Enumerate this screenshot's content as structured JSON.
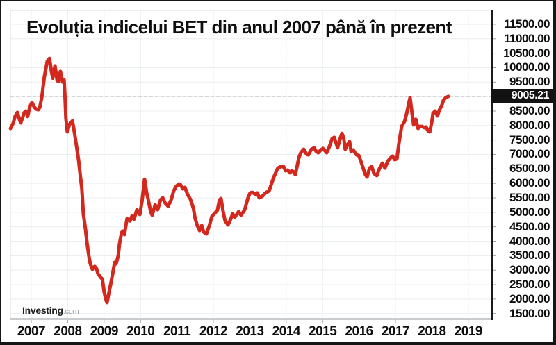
{
  "title": "Evoluția indicelui BET din anul 2007 până în prezent",
  "watermark": {
    "brand": "Investing",
    "suffix": ".com"
  },
  "current_value": {
    "label": "9005.21",
    "value": 9005.21
  },
  "y_axis": {
    "labels": [
      "11500.00",
      "11000.00",
      "10500.00",
      "10000.00",
      "9500.00",
      "8500.00",
      "8000.00",
      "7500.00",
      "7000.00",
      "6500.00",
      "6000.00",
      "5500.00",
      "5000.00",
      "4500.00",
      "4000.00",
      "3500.00",
      "3000.00",
      "2500.00",
      "2000.00",
      "1500.00"
    ]
  },
  "x_axis": {
    "years": [
      "2007",
      "2008",
      "2009",
      "2010",
      "2011",
      "2012",
      "2013",
      "2014",
      "2015",
      "2016",
      "2017",
      "2018",
      "2019"
    ]
  },
  "colors": {
    "line": "#d3281e",
    "badge_bg": "#121212",
    "badge_text": "#ffffff",
    "grid": "#e9eef0",
    "plot_border": "#d9dde0",
    "axis_line": "#1a1a1a",
    "bottom_axis": "#c9ccce",
    "tick": "#9aa0a5",
    "dashed_line": "#b0b5b8",
    "text": "#0e0e0e"
  },
  "chart_data": {
    "type": "line",
    "title": "Evoluția indicelui BET din anul 2007 până în prezent",
    "xlabel": "",
    "ylabel": "",
    "x_range": [
      2006.4,
      2019.65
    ],
    "y_grid": {
      "min": 1500,
      "max": 11500,
      "step": 500
    },
    "grid": true,
    "legend": false,
    "current_value_line": 9005.21,
    "series": [
      {
        "name": "BET",
        "points": [
          [
            2006.43,
            7900
          ],
          [
            2006.5,
            8070
          ],
          [
            2006.56,
            8330
          ],
          [
            2006.62,
            8450
          ],
          [
            2006.68,
            8190
          ],
          [
            2006.71,
            8090
          ],
          [
            2006.77,
            8300
          ],
          [
            2006.81,
            8450
          ],
          [
            2006.85,
            8500
          ],
          [
            2006.9,
            8310
          ],
          [
            2006.96,
            8650
          ],
          [
            2007.02,
            8800
          ],
          [
            2007.08,
            8640
          ],
          [
            2007.13,
            8570
          ],
          [
            2007.19,
            8545
          ],
          [
            2007.23,
            8620
          ],
          [
            2007.29,
            8980
          ],
          [
            2007.36,
            9700
          ],
          [
            2007.44,
            10230
          ],
          [
            2007.5,
            10320
          ],
          [
            2007.55,
            9900
          ],
          [
            2007.59,
            9640
          ],
          [
            2007.65,
            10060
          ],
          [
            2007.71,
            9560
          ],
          [
            2007.74,
            9520
          ],
          [
            2007.8,
            9870
          ],
          [
            2007.86,
            9500
          ],
          [
            2007.9,
            9580
          ],
          [
            2007.93,
            8900
          ],
          [
            2007.95,
            8250
          ],
          [
            2007.99,
            7780
          ],
          [
            2008.05,
            8040
          ],
          [
            2008.13,
            8160
          ],
          [
            2008.18,
            7800
          ],
          [
            2008.24,
            7300
          ],
          [
            2008.3,
            6800
          ],
          [
            2008.34,
            6340
          ],
          [
            2008.39,
            5810
          ],
          [
            2008.43,
            4950
          ],
          [
            2008.49,
            4400
          ],
          [
            2008.53,
            3940
          ],
          [
            2008.58,
            3500
          ],
          [
            2008.62,
            3220
          ],
          [
            2008.68,
            3030
          ],
          [
            2008.74,
            3130
          ],
          [
            2008.79,
            3060
          ],
          [
            2008.83,
            2880
          ],
          [
            2008.87,
            2815
          ],
          [
            2008.91,
            2740
          ],
          [
            2008.95,
            2700
          ],
          [
            2009.0,
            2260
          ],
          [
            2009.04,
            2020
          ],
          [
            2009.08,
            1880
          ],
          [
            2009.14,
            2260
          ],
          [
            2009.19,
            2580
          ],
          [
            2009.25,
            2980
          ],
          [
            2009.29,
            3270
          ],
          [
            2009.33,
            3220
          ],
          [
            2009.39,
            3510
          ],
          [
            2009.42,
            3890
          ],
          [
            2009.48,
            4300
          ],
          [
            2009.52,
            4350
          ],
          [
            2009.56,
            4230
          ],
          [
            2009.6,
            4560
          ],
          [
            2009.63,
            4780
          ],
          [
            2009.71,
            4700
          ],
          [
            2009.77,
            4880
          ],
          [
            2009.82,
            4760
          ],
          [
            2009.9,
            5090
          ],
          [
            2009.98,
            4925
          ],
          [
            2010.04,
            5380
          ],
          [
            2010.11,
            6140
          ],
          [
            2010.17,
            5670
          ],
          [
            2010.21,
            5450
          ],
          [
            2010.28,
            5000
          ],
          [
            2010.32,
            4900
          ],
          [
            2010.4,
            5260
          ],
          [
            2010.47,
            5090
          ],
          [
            2010.55,
            5430
          ],
          [
            2010.61,
            5500
          ],
          [
            2010.68,
            5310
          ],
          [
            2010.76,
            5210
          ],
          [
            2010.84,
            5430
          ],
          [
            2010.91,
            5740
          ],
          [
            2010.97,
            5880
          ],
          [
            2011.05,
            5980
          ],
          [
            2011.1,
            5950
          ],
          [
            2011.16,
            5810
          ],
          [
            2011.22,
            5860
          ],
          [
            2011.29,
            5620
          ],
          [
            2011.37,
            5450
          ],
          [
            2011.45,
            5140
          ],
          [
            2011.5,
            4780
          ],
          [
            2011.56,
            4540
          ],
          [
            2011.62,
            4370
          ],
          [
            2011.68,
            4540
          ],
          [
            2011.73,
            4320
          ],
          [
            2011.81,
            4250
          ],
          [
            2011.89,
            4540
          ],
          [
            2011.96,
            4860
          ],
          [
            2012.04,
            4970
          ],
          [
            2012.11,
            5070
          ],
          [
            2012.17,
            5430
          ],
          [
            2012.21,
            5475
          ],
          [
            2012.27,
            5020
          ],
          [
            2012.32,
            4710
          ],
          [
            2012.4,
            4565
          ],
          [
            2012.48,
            4780
          ],
          [
            2012.53,
            4950
          ],
          [
            2012.59,
            4830
          ],
          [
            2012.69,
            5020
          ],
          [
            2012.76,
            4900
          ],
          [
            2012.86,
            5090
          ],
          [
            2012.95,
            5500
          ],
          [
            2013.01,
            5670
          ],
          [
            2013.07,
            5690
          ],
          [
            2013.15,
            5620
          ],
          [
            2013.21,
            5670
          ],
          [
            2013.26,
            5500
          ],
          [
            2013.34,
            5550
          ],
          [
            2013.43,
            5670
          ],
          [
            2013.53,
            5740
          ],
          [
            2013.6,
            6000
          ],
          [
            2013.66,
            6220
          ],
          [
            2013.72,
            6390
          ],
          [
            2013.77,
            6530
          ],
          [
            2013.85,
            6580
          ],
          [
            2013.93,
            6580
          ],
          [
            2013.98,
            6435
          ],
          [
            2014.04,
            6460
          ],
          [
            2014.1,
            6365
          ],
          [
            2014.15,
            6435
          ],
          [
            2014.21,
            6390
          ],
          [
            2014.25,
            6300
          ],
          [
            2014.31,
            6650
          ],
          [
            2014.35,
            6890
          ],
          [
            2014.4,
            7060
          ],
          [
            2014.48,
            7180
          ],
          [
            2014.56,
            7010
          ],
          [
            2014.61,
            6985
          ],
          [
            2014.69,
            7180
          ],
          [
            2014.77,
            7230
          ],
          [
            2014.82,
            7110
          ],
          [
            2014.88,
            7060
          ],
          [
            2014.95,
            7155
          ],
          [
            2015.01,
            7205
          ],
          [
            2015.11,
            7060
          ],
          [
            2015.18,
            7250
          ],
          [
            2015.26,
            7540
          ],
          [
            2015.32,
            7590
          ],
          [
            2015.41,
            7230
          ],
          [
            2015.47,
            7500
          ],
          [
            2015.53,
            7730
          ],
          [
            2015.58,
            7560
          ],
          [
            2015.62,
            7180
          ],
          [
            2015.68,
            7330
          ],
          [
            2015.74,
            7445
          ],
          [
            2015.78,
            7110
          ],
          [
            2015.84,
            7155
          ],
          [
            2015.93,
            6985
          ],
          [
            2015.99,
            6965
          ],
          [
            2016.05,
            6770
          ],
          [
            2016.1,
            6580
          ],
          [
            2016.16,
            6340
          ],
          [
            2016.22,
            6220
          ],
          [
            2016.29,
            6530
          ],
          [
            2016.35,
            6580
          ],
          [
            2016.41,
            6340
          ],
          [
            2016.49,
            6270
          ],
          [
            2016.56,
            6510
          ],
          [
            2016.64,
            6700
          ],
          [
            2016.71,
            6530
          ],
          [
            2016.79,
            6770
          ],
          [
            2016.87,
            6890
          ],
          [
            2016.92,
            6940
          ],
          [
            2016.98,
            6820
          ],
          [
            2017.04,
            6845
          ],
          [
            2017.1,
            7420
          ],
          [
            2017.17,
            7970
          ],
          [
            2017.25,
            8140
          ],
          [
            2017.31,
            8425
          ],
          [
            2017.37,
            8790
          ],
          [
            2017.4,
            8960
          ],
          [
            2017.46,
            8380
          ],
          [
            2017.5,
            8020
          ],
          [
            2017.56,
            8215
          ],
          [
            2017.62,
            7900
          ],
          [
            2017.67,
            7970
          ],
          [
            2017.73,
            7970
          ],
          [
            2017.79,
            7925
          ],
          [
            2017.84,
            7950
          ],
          [
            2017.9,
            7805
          ],
          [
            2017.94,
            7780
          ],
          [
            2018.0,
            8140
          ],
          [
            2018.03,
            8425
          ],
          [
            2018.09,
            8500
          ],
          [
            2018.15,
            8330
          ],
          [
            2018.21,
            8545
          ],
          [
            2018.27,
            8690
          ],
          [
            2018.32,
            8880
          ],
          [
            2018.38,
            8960
          ],
          [
            2018.45,
            9005.21
          ]
        ]
      }
    ]
  }
}
